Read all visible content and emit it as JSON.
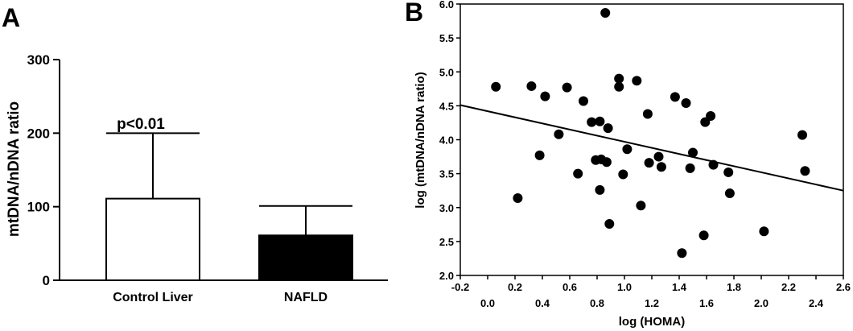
{
  "chart_data": [
    {
      "panel_label": "A",
      "type": "bar",
      "categories": [
        "Control Liver",
        "NAFLD"
      ],
      "values": [
        111,
        61
      ],
      "error_upper": [
        200,
        101
      ],
      "ylabel": "mtDNA/nDNA ratio",
      "ylim": [
        0,
        300
      ],
      "yticks": [
        "0",
        "100",
        "200",
        "300"
      ],
      "bar_colors": [
        "#ffffff",
        "#000000"
      ],
      "annotation": "p<0.01"
    },
    {
      "panel_label": "B",
      "type": "scatter",
      "xlabel": "log (HOMA)",
      "ylabel": "log (mtDNA/nDNA ratio)",
      "xlim": [
        -0.2,
        2.6
      ],
      "ylim": [
        2.0,
        6.0
      ],
      "xticks_top": [
        "-0.2",
        "0.2",
        "0.6",
        "1.0",
        "1.4",
        "1.8",
        "2.2",
        "2.6"
      ],
      "xticks_bottom": [
        "0.0",
        "0.4",
        "0.8",
        "1.2",
        "1.6",
        "2.0",
        "2.4"
      ],
      "yticks": [
        "2.0",
        "2.5",
        "3.0",
        "3.5",
        "4.0",
        "4.5",
        "5.0",
        "5.5",
        "6.0"
      ],
      "points": [
        [
          0.06,
          4.78
        ],
        [
          0.22,
          3.14
        ],
        [
          0.32,
          4.79
        ],
        [
          0.38,
          3.77
        ],
        [
          0.42,
          4.64
        ],
        [
          0.52,
          4.08
        ],
        [
          0.58,
          4.77
        ],
        [
          0.66,
          3.5
        ],
        [
          0.7,
          4.57
        ],
        [
          0.76,
          4.26
        ],
        [
          0.79,
          3.7
        ],
        [
          0.82,
          4.27
        ],
        [
          0.82,
          3.26
        ],
        [
          0.83,
          3.71
        ],
        [
          0.86,
          5.87
        ],
        [
          0.87,
          3.67
        ],
        [
          0.88,
          4.17
        ],
        [
          0.89,
          2.76
        ],
        [
          0.96,
          4.9
        ],
        [
          0.96,
          4.78
        ],
        [
          0.99,
          3.49
        ],
        [
          1.02,
          3.86
        ],
        [
          1.09,
          4.87
        ],
        [
          1.12,
          3.03
        ],
        [
          1.17,
          4.38
        ],
        [
          1.18,
          3.66
        ],
        [
          1.25,
          3.75
        ],
        [
          1.27,
          3.6
        ],
        [
          1.37,
          4.63
        ],
        [
          1.42,
          2.33
        ],
        [
          1.45,
          4.54
        ],
        [
          1.48,
          3.58
        ],
        [
          1.5,
          3.81
        ],
        [
          1.58,
          2.59
        ],
        [
          1.59,
          4.26
        ],
        [
          1.63,
          4.35
        ],
        [
          1.65,
          3.63
        ],
        [
          1.76,
          3.52
        ],
        [
          1.77,
          3.21
        ],
        [
          2.02,
          2.65
        ],
        [
          2.3,
          4.07
        ],
        [
          2.32,
          3.54
        ]
      ],
      "regression_line": [
        [
          -0.2,
          4.51
        ],
        [
          2.6,
          3.25
        ]
      ],
      "point_color": "#000000"
    }
  ]
}
